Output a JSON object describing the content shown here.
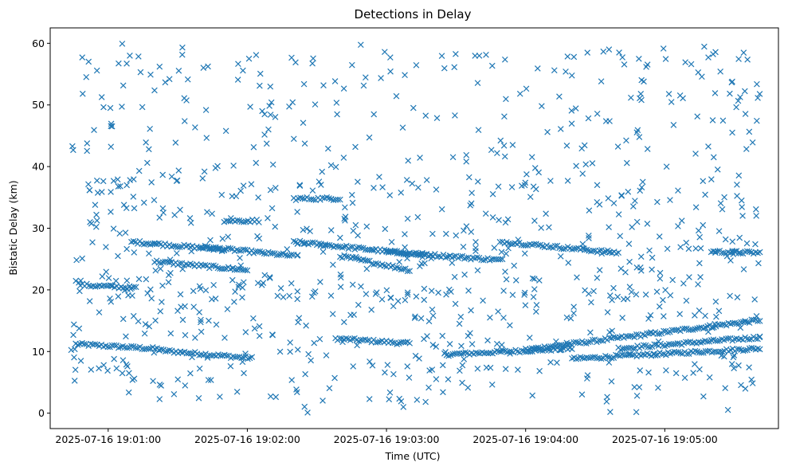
{
  "chart_data": {
    "type": "scatter",
    "title": "Detections in Delay",
    "xlabel": "Time (UTC)",
    "ylabel": "Bistatic Delay (km)",
    "marker": "x",
    "color": "#1f77b4",
    "grid": false,
    "x_range": [
      "2025-07-16 19:00:35",
      "2025-07-16 19:05:49"
    ],
    "ylim": [
      -2.5,
      62.5
    ],
    "x_ticks": [
      "2025-07-16 19:01:00",
      "2025-07-16 19:02:00",
      "2025-07-16 19:03:00",
      "2025-07-16 19:04:00",
      "2025-07-16 19:05:00"
    ],
    "y_ticks": [
      0,
      10,
      20,
      30,
      40,
      50,
      60
    ],
    "data_start": "2025-07-16 19:00:44",
    "data_end": "2025-07-16 19:05:41",
    "tracks": [
      {
        "start": "2025-07-16 19:00:46",
        "end": "2025-07-16 19:01:22",
        "y_start": 11.2,
        "y_end": 10.4
      },
      {
        "start": "2025-07-16 19:01:22",
        "end": "2025-07-16 19:02:02",
        "y_start": 10.2,
        "y_end": 8.9
      },
      {
        "start": "2025-07-16 19:02:38",
        "end": "2025-07-16 19:03:10",
        "y_start": 12.1,
        "y_end": 11.3
      },
      {
        "start": "2025-07-16 19:03:25",
        "end": "2025-07-16 19:04:20",
        "y_start": 9.5,
        "y_end": 10.5
      },
      {
        "start": "2025-07-16 19:04:00",
        "end": "2025-07-16 19:05:41",
        "y_start": 10.3,
        "y_end": 15.1
      },
      {
        "start": "2025-07-16 19:04:20",
        "end": "2025-07-16 19:05:41",
        "y_start": 8.8,
        "y_end": 10.5
      },
      {
        "start": "2025-07-16 19:04:40",
        "end": "2025-07-16 19:05:41",
        "y_start": 10.5,
        "y_end": 12.3
      },
      {
        "start": "2025-07-16 19:00:48",
        "end": "2025-07-16 19:01:12",
        "y_start": 20.8,
        "y_end": 20.3
      },
      {
        "start": "2025-07-16 19:01:10",
        "end": "2025-07-16 19:01:50",
        "y_start": 27.8,
        "y_end": 26.5
      },
      {
        "start": "2025-07-16 19:01:20",
        "end": "2025-07-16 19:02:00",
        "y_start": 24.6,
        "y_end": 23.2
      },
      {
        "start": "2025-07-16 19:01:40",
        "end": "2025-07-16 19:02:20",
        "y_start": 27.0,
        "y_end": 25.5
      },
      {
        "start": "2025-07-16 19:02:20",
        "end": "2025-07-16 19:03:20",
        "y_start": 27.8,
        "y_end": 25.5
      },
      {
        "start": "2025-07-16 19:02:40",
        "end": "2025-07-16 19:03:10",
        "y_start": 25.5,
        "y_end": 23.2
      },
      {
        "start": "2025-07-16 19:03:00",
        "end": "2025-07-16 19:03:50",
        "y_start": 26.2,
        "y_end": 24.8
      },
      {
        "start": "2025-07-16 19:03:50",
        "end": "2025-07-16 19:04:40",
        "y_start": 27.8,
        "y_end": 26.0
      },
      {
        "start": "2025-07-16 19:05:20",
        "end": "2025-07-16 19:05:41",
        "y_start": 26.2,
        "y_end": 26.0
      },
      {
        "start": "2025-07-16 19:02:20",
        "end": "2025-07-16 19:02:40",
        "y_start": 34.8,
        "y_end": 34.8
      },
      {
        "start": "2025-07-16 19:01:50",
        "end": "2025-07-16 19:02:05",
        "y_start": 31.2,
        "y_end": 31.2
      }
    ],
    "scattered_points": 900
  }
}
